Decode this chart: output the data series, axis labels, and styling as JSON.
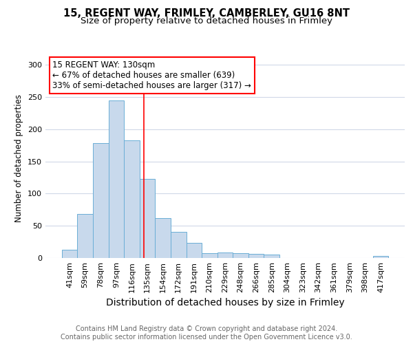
{
  "title1": "15, REGENT WAY, FRIMLEY, CAMBERLEY, GU16 8NT",
  "title2": "Size of property relative to detached houses in Frimley",
  "xlabel": "Distribution of detached houses by size in Frimley",
  "ylabel": "Number of detached properties",
  "categories": [
    "41sqm",
    "59sqm",
    "78sqm",
    "97sqm",
    "116sqm",
    "135sqm",
    "154sqm",
    "172sqm",
    "191sqm",
    "210sqm",
    "229sqm",
    "248sqm",
    "266sqm",
    "285sqm",
    "304sqm",
    "323sqm",
    "342sqm",
    "361sqm",
    "379sqm",
    "398sqm",
    "417sqm"
  ],
  "values": [
    13,
    68,
    178,
    245,
    183,
    123,
    62,
    41,
    23,
    8,
    9,
    8,
    6,
    5,
    0,
    0,
    0,
    0,
    0,
    0,
    3
  ],
  "bar_color": "#c8d9ec",
  "bar_edge_color": "#6aaed6",
  "bar_width": 1.0,
  "red_line_x": 4.76,
  "annotation_text": "15 REGENT WAY: 130sqm\n← 67% of detached houses are smaller (639)\n33% of semi-detached houses are larger (317) →",
  "ylim": [
    0,
    310
  ],
  "yticks": [
    0,
    50,
    100,
    150,
    200,
    250,
    300
  ],
  "footer_text": "Contains HM Land Registry data © Crown copyright and database right 2024.\nContains public sector information licensed under the Open Government Licence v3.0.",
  "bg_color": "#ffffff",
  "plot_bg_color": "#ffffff",
  "grid_color": "#d0d8e8",
  "title1_fontsize": 10.5,
  "title2_fontsize": 9.5,
  "xlabel_fontsize": 10,
  "ylabel_fontsize": 8.5,
  "tick_fontsize": 8,
  "footer_fontsize": 7,
  "ann_fontsize": 8.5
}
